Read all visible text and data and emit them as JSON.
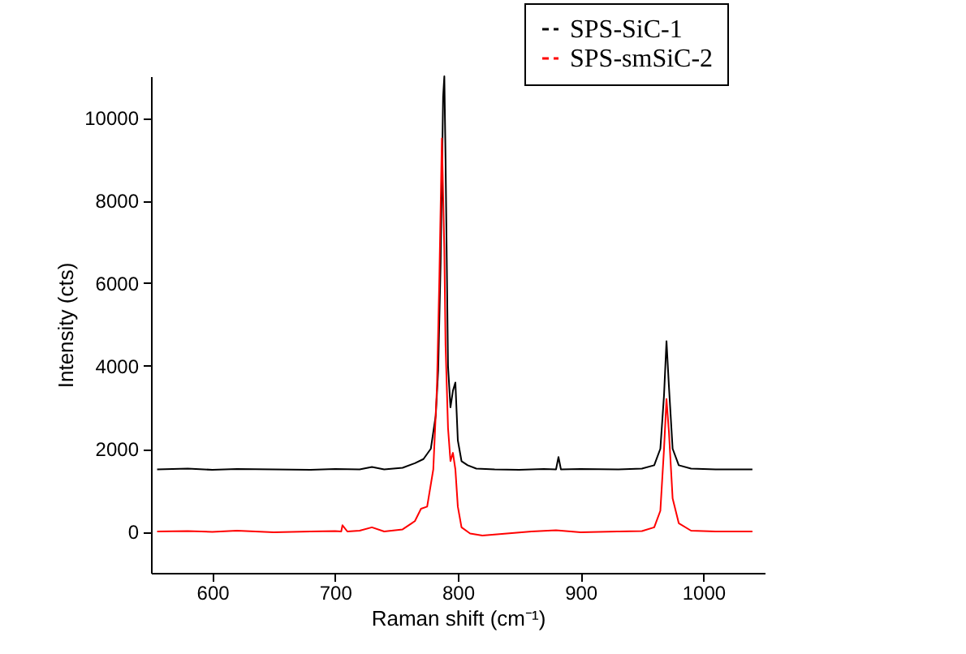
{
  "chart_data": {
    "type": "line",
    "xlabel": "Raman shift (cm⁻¹)",
    "ylabel": "Intensity (cts)",
    "xlim": [
      550,
      1050
    ],
    "ylim": [
      -1000,
      11000
    ],
    "xticks": [
      600,
      700,
      800,
      900,
      1000
    ],
    "yticks": [
      0,
      2000,
      4000,
      6000,
      8000,
      10000
    ],
    "grid": false,
    "legend": "top right",
    "series": [
      {
        "name": "SPS-SiC-1",
        "color": "#000000",
        "x": [
          555,
          580,
          600,
          620,
          650,
          680,
          700,
          720,
          730,
          740,
          755,
          765,
          772,
          778,
          782,
          784,
          786,
          788,
          789,
          790,
          792,
          794,
          796,
          798,
          800,
          803,
          808,
          815,
          830,
          850,
          870,
          880,
          882,
          884,
          900,
          930,
          950,
          960,
          965,
          968,
          970,
          972,
          975,
          980,
          990,
          1010,
          1040
        ],
        "values": [
          1500,
          1520,
          1490,
          1510,
          1500,
          1490,
          1510,
          1500,
          1560,
          1500,
          1540,
          1650,
          1750,
          2000,
          2800,
          3900,
          6500,
          10500,
          11000,
          9000,
          4000,
          3000,
          3400,
          3600,
          2200,
          1700,
          1600,
          1520,
          1500,
          1490,
          1510,
          1500,
          1800,
          1500,
          1510,
          1500,
          1520,
          1600,
          2000,
          3300,
          4600,
          3500,
          2000,
          1600,
          1520,
          1500,
          1500
        ]
      },
      {
        "name": "SPS-smSiC-2",
        "color": "#ff0000",
        "x": [
          555,
          580,
          600,
          620,
          650,
          680,
          700,
          705,
          706,
          710,
          720,
          730,
          740,
          755,
          765,
          770,
          775,
          780,
          783,
          785,
          787,
          789,
          790,
          792,
          794,
          796,
          798,
          800,
          803,
          810,
          820,
          840,
          860,
          880,
          900,
          930,
          950,
          960,
          965,
          968,
          970,
          972,
          975,
          980,
          990,
          1010,
          1040
        ],
        "values": [
          0,
          10,
          -10,
          20,
          -20,
          0,
          10,
          0,
          150,
          0,
          20,
          100,
          0,
          50,
          250,
          550,
          600,
          1500,
          3500,
          6200,
          9500,
          6800,
          4500,
          2500,
          1700,
          1900,
          1500,
          600,
          100,
          -50,
          -100,
          -50,
          0,
          30,
          -20,
          0,
          10,
          100,
          500,
          2000,
          3200,
          2400,
          800,
          200,
          20,
          0,
          0
        ]
      }
    ]
  }
}
